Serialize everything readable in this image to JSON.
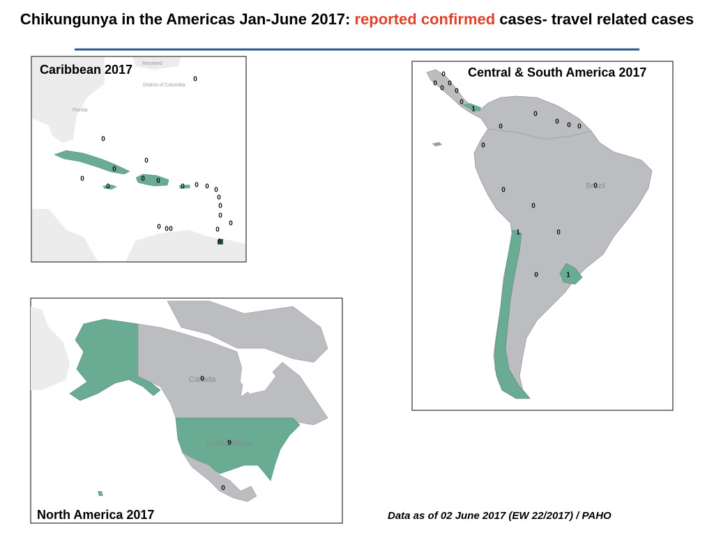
{
  "title": {
    "lead": "Chikungunya in the Americas Jan-June 2017: ",
    "highlight": "reported confirmed",
    "tail": " cases- travel related cases"
  },
  "maps": [
    {
      "title": "Caribbean 2017",
      "basemap_labels": [
        "Maryland",
        "District of Columbia",
        "Florida"
      ],
      "counts": [
        0,
        0,
        0,
        0,
        0,
        0,
        0,
        0,
        0,
        0,
        0,
        0,
        0,
        0,
        0,
        0,
        0,
        0,
        0,
        0,
        0
      ]
    },
    {
      "title": "Central & South America  2017",
      "basemap_labels": [
        "Brazil"
      ],
      "counts": [
        0,
        0,
        0,
        0,
        0,
        0,
        1,
        0,
        0,
        0,
        0,
        0,
        0,
        0,
        0,
        0,
        1,
        0,
        0,
        1
      ]
    },
    {
      "title": "North America  2017",
      "basemap_labels": [
        "Canada",
        "United States"
      ],
      "counts": [
        0,
        9,
        0
      ]
    }
  ],
  "footer": "Data as of 02 June 2017 (EW 22/2017) / PAHO"
}
